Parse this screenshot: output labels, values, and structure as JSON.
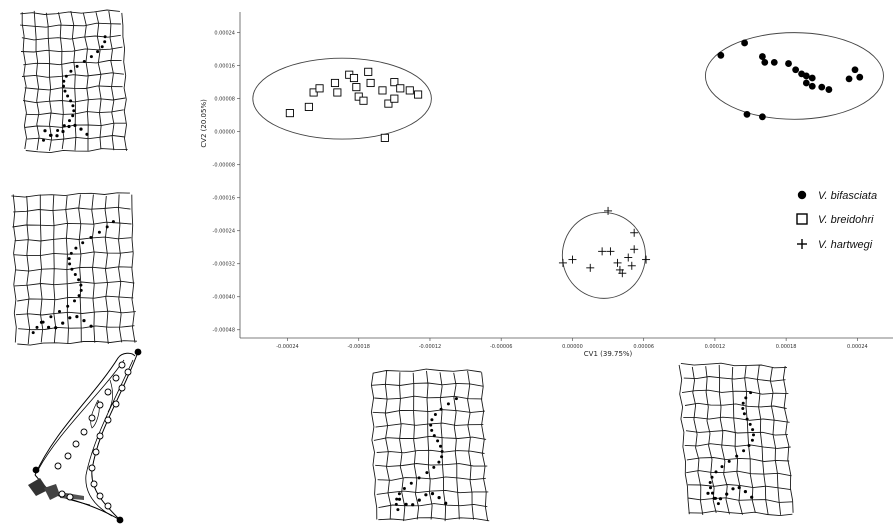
{
  "chart_data": {
    "type": "scatter",
    "xlabel": "CV1  (39.75%)",
    "ylabel": "CV2  (20.05%)",
    "xlim": [
      -0.00028,
      0.00027
    ],
    "ylim": [
      -0.0005,
      0.00029
    ],
    "x_ticks": [
      "-0.00024",
      "-0.00018",
      "-0.00012",
      "-0.00006",
      "0.00000",
      "0.00006",
      "0.00012",
      "0.00018",
      "0.00024"
    ],
    "x_tick_values": [
      -0.00024,
      -0.00018,
      -0.00012,
      -6e-05,
      0,
      6e-05,
      0.00012,
      0.00018,
      0.00024
    ],
    "y_ticks": [
      "0.00024",
      "0.00016",
      "0.00008",
      "0.00000",
      "-0.00008",
      "-0.00016",
      "-0.00024",
      "-0.00032",
      "-0.00040",
      "-0.00048"
    ],
    "y_tick_values": [
      0.00024,
      0.00016,
      8e-05,
      0,
      -8e-05,
      -0.00016,
      -0.00024,
      -0.00032,
      -0.0004,
      -0.00048
    ],
    "legend_position": "right",
    "series": [
      {
        "name": "V. bifasciata",
        "marker": "filled-circle",
        "color": "#000000",
        "x": [
          0.000125,
          0.000145,
          0.00016,
          0.000162,
          0.00017,
          0.000182,
          0.000188,
          0.000193,
          0.000197,
          0.000202,
          0.000197,
          0.000202,
          0.00021,
          0.000216,
          0.000233,
          0.000238,
          0.000242,
          0.000147,
          0.00016
        ],
        "y": [
          0.000185,
          0.000215,
          0.000182,
          0.000168,
          0.000168,
          0.000165,
          0.00015,
          0.00014,
          0.000135,
          0.00013,
          0.000118,
          0.00011,
          0.000108,
          0.000102,
          0.000128,
          0.00015,
          0.000132,
          4.2e-05,
          3.6e-05
        ]
      },
      {
        "name": "V. breidohri",
        "marker": "open-square",
        "color": "#000000",
        "x": [
          -0.000238,
          -0.000222,
          -0.000218,
          -0.000213,
          -0.0002,
          -0.000198,
          -0.000188,
          -0.000184,
          -0.000182,
          -0.00018,
          -0.000176,
          -0.000172,
          -0.00017,
          -0.00016,
          -0.000155,
          -0.00015,
          -0.00015,
          -0.000145,
          -0.000137,
          -0.00013,
          -0.000158
        ],
        "y": [
          4.5e-05,
          6e-05,
          9.5e-05,
          0.000105,
          0.000118,
          9.5e-05,
          0.000138,
          0.00013,
          0.000108,
          8.5e-05,
          7.5e-05,
          0.000145,
          0.000118,
          0.0001,
          6.8e-05,
          0.00012,
          8e-05,
          0.000105,
          0.0001,
          9e-05,
          -1.5e-05
        ]
      },
      {
        "name": "V. hartwegi",
        "marker": "plus",
        "color": "#000000",
        "x": [
          -8e-06,
          0.0,
          1.5e-05,
          2.5e-05,
          3.2e-05,
          3.8e-05,
          4e-05,
          4.2e-05,
          4.7e-05,
          5e-05,
          5.2e-05,
          5.2e-05,
          6.2e-05,
          3e-05
        ],
        "y": [
          -0.000318,
          -0.00031,
          -0.00033,
          -0.00029,
          -0.00029,
          -0.000318,
          -0.000335,
          -0.000343,
          -0.000305,
          -0.000325,
          -0.000285,
          -0.000245,
          -0.00031,
          -0.000192
        ]
      }
    ],
    "ellipses": [
      {
        "group": "V. bifasciata",
        "cx": 0.000187,
        "cy": 0.000135,
        "rx": 7.5e-05,
        "ry": 0.000105
      },
      {
        "group": "V. breidohri",
        "cx": -0.000194,
        "cy": 8e-05,
        "rx": 7.52e-05,
        "ry": 9.8e-05
      },
      {
        "group": "V. hartwegi",
        "cx": 2.65e-05,
        "cy": -0.0003,
        "rx": 3.5e-05,
        "ry": 0.000104
      }
    ]
  },
  "colors": {
    "ink": "#000000",
    "axis": "#555555",
    "grid_ink": "#1a1a1a"
  },
  "deformation_grids": [
    {
      "panel": "top-left"
    },
    {
      "panel": "mid-left"
    },
    {
      "panel": "bottom-center-left"
    },
    {
      "panel": "bottom-center-right"
    }
  ],
  "landmark_diagram": {
    "panel": "bottom-left"
  }
}
